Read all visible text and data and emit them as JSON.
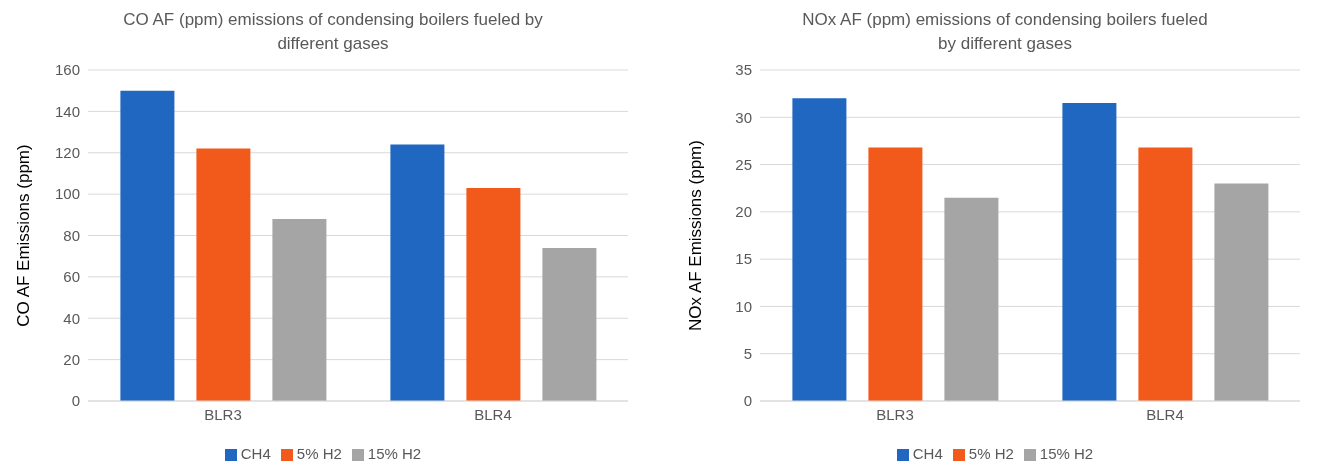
{
  "chart_data": [
    {
      "type": "bar",
      "title": "CO AF (ppm)  emissions of condensing boilers fueled by different gases",
      "ylabel": "CO AF Emissions (ppm)",
      "categories": [
        "BLR3",
        "BLR4"
      ],
      "series": [
        {
          "name": "CH4",
          "color": "#1f67c0",
          "values": [
            150,
            124
          ]
        },
        {
          "name": "5% H2",
          "color": "#f25a1b",
          "values": [
            122,
            103
          ]
        },
        {
          "name": "15% H2",
          "color": "#a5a5a5",
          "values": [
            88,
            74
          ]
        }
      ],
      "ylim": [
        0,
        160
      ],
      "yticks": [
        0,
        20,
        40,
        60,
        80,
        100,
        120,
        140,
        160
      ],
      "grid": "y",
      "legend": "bottom"
    },
    {
      "type": "bar",
      "title": "NOx AF (ppm) emissions of condensing boilers fueled by different gases",
      "ylabel": "NOx AF Emissions (ppm)",
      "categories": [
        "BLR3",
        "BLR4"
      ],
      "series": [
        {
          "name": "CH4",
          "color": "#1f67c0",
          "values": [
            32,
            31.5
          ]
        },
        {
          "name": "5% H2",
          "color": "#f25a1b",
          "values": [
            26.8,
            26.8
          ]
        },
        {
          "name": "15% H2",
          "color": "#a5a5a5",
          "values": [
            21.5,
            23
          ]
        }
      ],
      "ylim": [
        0,
        35
      ],
      "yticks": [
        0,
        5,
        10,
        15,
        20,
        25,
        30,
        35
      ],
      "grid": "y",
      "legend": "bottom"
    }
  ]
}
